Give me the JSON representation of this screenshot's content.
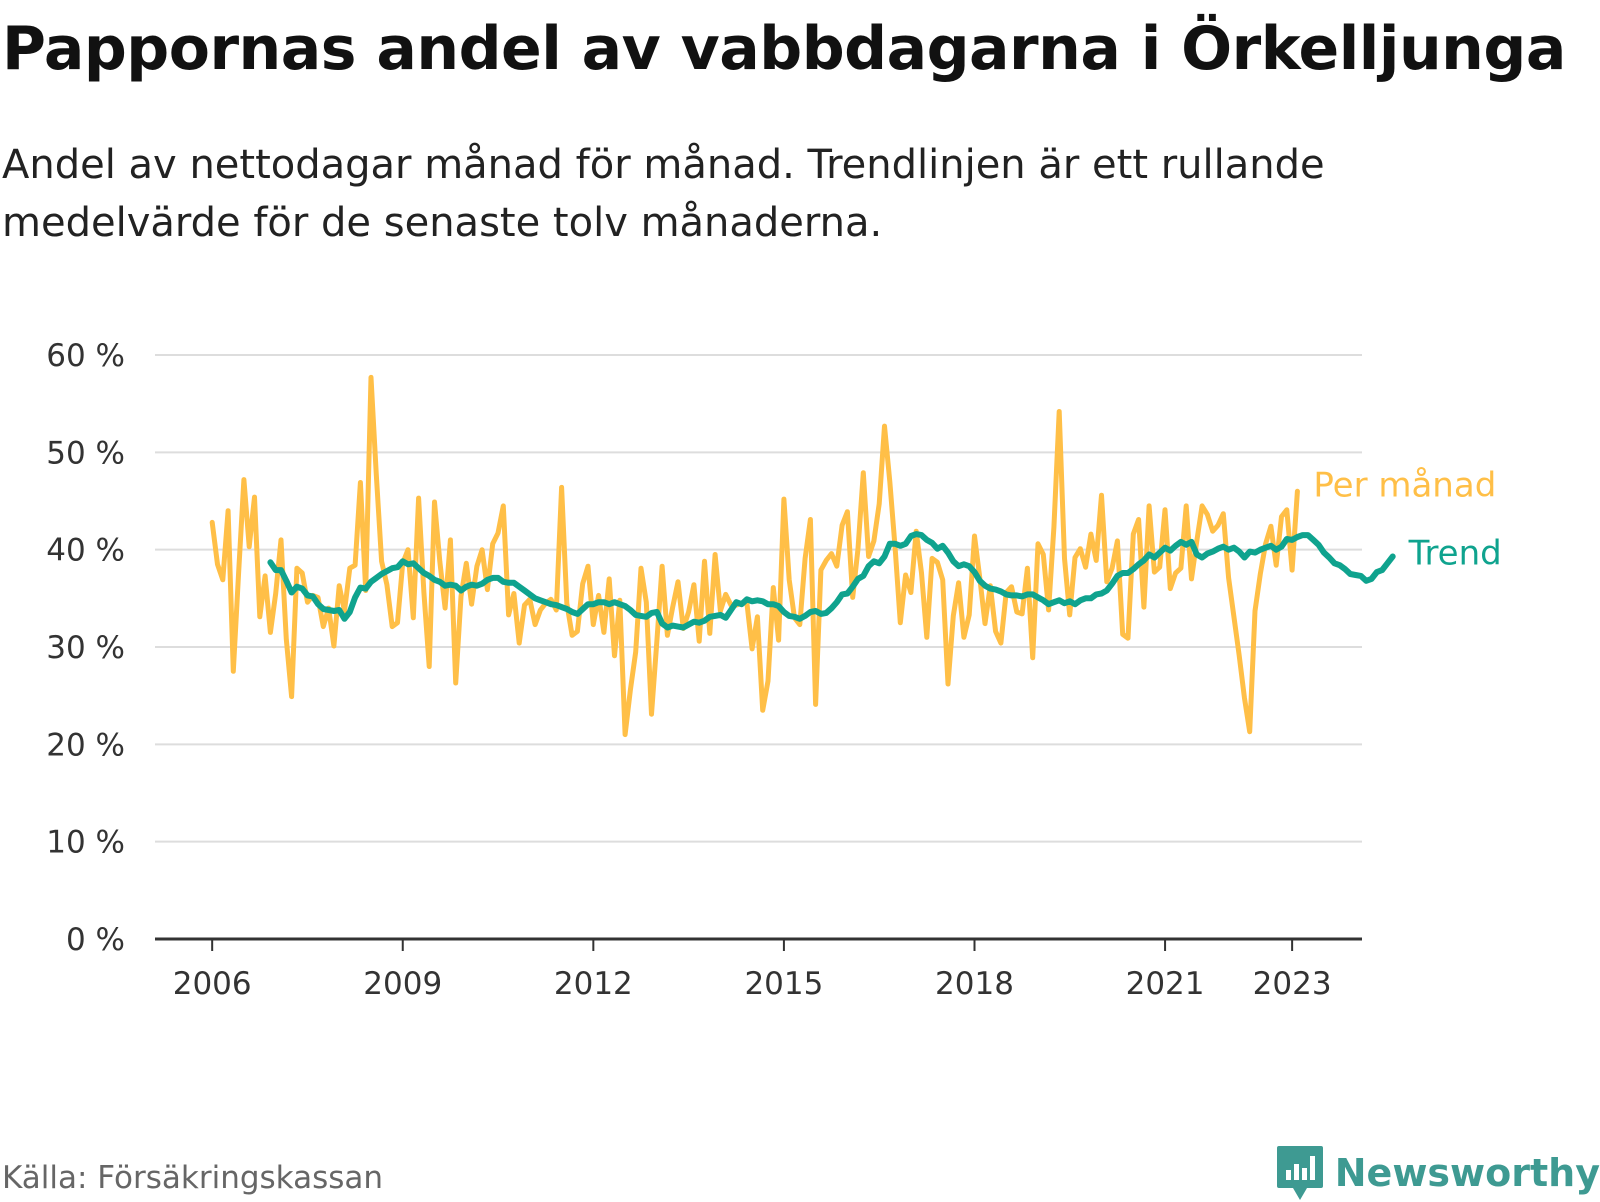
{
  "title": "Pappornas andel av vabbdagarna i Örkelljunga",
  "subtitle": "Andel av nettodagar månad för månad. Trendlinjen är ett rullande medelvärde för de senaste tolv månaderna.",
  "source": "Källa: Försäkringskassan",
  "brand": {
    "name": "Newsworthy",
    "icon": "newsworthy-logo-icon",
    "color": "#3e9a92"
  },
  "chart_data": {
    "type": "line",
    "title": "Pappornas andel av vabbdagarna i Örkelljunga",
    "y_ticks": [
      "0 %",
      "10 %",
      "20 %",
      "30 %",
      "40 %",
      "50 %",
      "60 %"
    ],
    "x_ticks": [
      "2006",
      "2009",
      "2012",
      "2015",
      "2018",
      "2021",
      "2023"
    ],
    "ylim": [
      0,
      60
    ],
    "xlim": [
      2005.1,
      2024.1
    ],
    "grid": true,
    "series": [
      {
        "name": "Per månad",
        "color": "#ffbf47",
        "x_start": 2006.0,
        "step": 0.08333,
        "values": [
          42.8,
          38.5,
          36.9,
          44.0,
          27.5,
          37.6,
          47.2,
          40.3,
          45.4,
          33.1,
          37.3,
          31.5,
          35.5,
          41.0,
          30.8,
          24.9,
          38.1,
          37.6,
          34.6,
          35.3,
          35.1,
          32.1,
          34.0,
          30.1,
          36.3,
          33.7,
          38.1,
          38.4,
          46.9,
          35.8,
          57.7,
          47.7,
          38.8,
          36.4,
          32.1,
          32.5,
          38.6,
          40.0,
          33.0,
          45.3,
          35.6,
          28.0,
          44.9,
          38.8,
          34.0,
          41.0,
          26.3,
          35.2,
          38.6,
          34.4,
          38.3,
          40.0,
          35.9,
          40.6,
          41.7,
          44.5,
          33.3,
          35.5,
          30.4,
          34.3,
          34.9,
          32.3,
          33.8,
          34.5,
          34.9,
          33.8,
          46.4,
          34.5,
          31.2,
          31.6,
          36.5,
          38.3,
          32.3,
          35.3,
          31.5,
          37.0,
          29.1,
          34.8,
          21.0,
          25.6,
          29.5,
          38.1,
          34.6,
          23.1,
          30.5,
          38.3,
          31.2,
          34.1,
          36.7,
          31.9,
          33.6,
          36.4,
          30.6,
          38.8,
          31.4,
          39.5,
          33.7,
          35.4,
          34.3,
          34.3,
          34.5,
          34.6,
          29.8,
          33.1,
          23.5,
          26.5,
          36.1,
          30.7,
          45.2,
          36.9,
          33.0,
          32.3,
          39.1,
          43.1,
          24.1,
          37.9,
          38.9,
          39.6,
          38.3,
          42.5,
          43.9,
          35.1,
          40.1,
          47.9,
          39.3,
          40.9,
          44.7,
          52.7,
          47.0,
          40.2,
          32.5,
          37.4,
          35.6,
          41.9,
          37.6,
          31.0,
          39.1,
          38.7,
          36.9,
          26.2,
          33.2,
          36.6,
          31.0,
          33.3,
          41.4,
          37.1,
          32.4,
          36.3,
          31.6,
          30.4,
          35.6,
          36.2,
          33.6,
          33.4,
          38.1,
          28.9,
          40.6,
          39.5,
          33.8,
          42.3,
          54.2,
          39.1,
          33.3,
          39.2,
          40.1,
          38.2,
          41.6,
          38.9,
          45.6,
          36.7,
          38.1,
          40.9,
          31.3,
          30.9,
          41.6,
          43.1,
          34.1,
          44.5,
          37.7,
          38.2,
          44.1,
          36.0,
          37.6,
          38.1,
          44.5,
          37.0,
          40.9,
          44.5,
          43.6,
          41.9,
          42.5,
          43.7,
          37.1,
          33.2,
          29.2,
          24.8,
          21.3,
          33.7,
          37.5,
          40.6,
          42.4,
          38.4,
          43.4,
          44.1,
          37.9,
          46.0
        ]
      },
      {
        "name": "Trend",
        "color": "#0fa38e",
        "x_start": 2006.917,
        "step": 0.08333,
        "values": [
          38.7,
          37.9,
          37.9,
          36.8,
          35.6,
          36.2,
          36.0,
          35.3,
          35.2,
          34.4,
          33.9,
          33.8,
          33.7,
          33.8,
          32.9,
          33.6,
          35.1,
          36.1,
          36.0,
          36.7,
          37.1,
          37.5,
          37.8,
          38.1,
          38.2,
          38.8,
          38.5,
          38.6,
          38.1,
          37.6,
          37.3,
          36.9,
          36.7,
          36.3,
          36.4,
          36.3,
          35.8,
          36.2,
          36.4,
          36.3,
          36.5,
          36.9,
          37.1,
          37.1,
          36.7,
          36.6,
          36.6,
          36.2,
          35.8,
          35.4,
          35.0,
          34.8,
          34.6,
          34.4,
          34.3,
          34.1,
          33.9,
          33.6,
          33.4,
          33.9,
          34.4,
          34.4,
          34.6,
          34.6,
          34.4,
          34.6,
          34.4,
          34.2,
          33.8,
          33.3,
          33.2,
          33.1,
          33.5,
          33.6,
          32.4,
          32.0,
          32.2,
          32.1,
          32.0,
          32.3,
          32.6,
          32.5,
          32.7,
          33.1,
          33.2,
          33.3,
          33.0,
          33.8,
          34.6,
          34.4,
          34.9,
          34.7,
          34.8,
          34.7,
          34.4,
          34.4,
          34.2,
          33.6,
          33.2,
          33.1,
          32.9,
          33.2,
          33.6,
          33.7,
          33.4,
          33.5,
          34.0,
          34.6,
          35.4,
          35.5,
          36.2,
          37.0,
          37.3,
          38.3,
          38.8,
          38.6,
          39.3,
          40.6,
          40.6,
          40.4,
          40.6,
          41.4,
          41.6,
          41.5,
          41.0,
          40.7,
          40.1,
          40.4,
          39.7,
          38.8,
          38.3,
          38.5,
          38.3,
          37.7,
          36.8,
          36.3,
          36.0,
          35.9,
          35.7,
          35.4,
          35.3,
          35.3,
          35.2,
          35.4,
          35.4,
          35.1,
          34.8,
          34.4,
          34.6,
          34.8,
          34.5,
          34.7,
          34.4,
          34.8,
          35.0,
          35.0,
          35.4,
          35.5,
          35.8,
          36.5,
          37.3,
          37.6,
          37.6,
          38.0,
          38.5,
          38.9,
          39.5,
          39.2,
          39.7,
          40.2,
          39.9,
          40.4,
          40.8,
          40.5,
          40.8,
          39.5,
          39.2,
          39.6,
          39.8,
          40.1,
          40.3,
          40.0,
          40.2,
          39.8,
          39.2,
          39.8,
          39.7,
          40.0,
          40.2,
          40.4,
          40.0,
          40.3,
          41.1,
          41.0,
          41.3,
          41.5,
          41.5,
          41.0,
          40.5,
          39.7,
          39.2,
          38.6,
          38.4,
          38.0,
          37.5,
          37.4,
          37.3,
          36.8,
          37.0,
          37.7,
          37.9,
          38.6,
          39.3
        ]
      }
    ]
  }
}
